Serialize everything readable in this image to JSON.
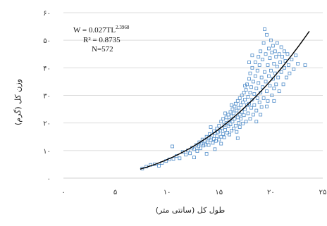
{
  "chart_data": {
    "type": "scatter",
    "xlabel": "طول کل (سانتی متر)",
    "ylabel": "وزن کل (گرم)",
    "xlim": [
      0,
      25
    ],
    "ylim": [
      0,
      60
    ],
    "x_ticks": [
      0,
      5,
      10,
      15,
      20,
      25
    ],
    "y_ticks": [
      0,
      10,
      20,
      30,
      40,
      50,
      60
    ],
    "x_tick_labels": [
      "۰",
      "۵",
      "۱۰",
      "۱۵",
      "۲۰",
      "۲۵"
    ],
    "y_tick_labels": [
      "۰",
      "۱۰",
      "۲۰",
      "۳۰",
      "۴۰",
      "۵۰",
      "۶۰"
    ],
    "grid": "horizontal",
    "marker": "open-square",
    "point_color": "#4f8cc9",
    "fit_color": "#000000",
    "fit": {
      "a": 0.027,
      "b": 2.3968,
      "x_range": [
        7.4,
        23.7
      ]
    },
    "annotation": {
      "equation_main": "W = 0.027TL",
      "equation_exp": "2.3968",
      "r2_label": "R² = 0.8735",
      "n_label": "N=572"
    },
    "points": [
      [
        7.6,
        3.5
      ],
      [
        8.0,
        4.2
      ],
      [
        8.4,
        4.8
      ],
      [
        8.8,
        5.0
      ],
      [
        9.2,
        4.5
      ],
      [
        9.5,
        5.5
      ],
      [
        9.9,
        6.2
      ],
      [
        10.2,
        6.8
      ],
      [
        10.6,
        7.0
      ],
      [
        10.5,
        11.5
      ],
      [
        10.9,
        8.0
      ],
      [
        11.2,
        7.2
      ],
      [
        11.5,
        9.5
      ],
      [
        11.8,
        8.5
      ],
      [
        12.0,
        10.0
      ],
      [
        12.2,
        9.0
      ],
      [
        12.4,
        11.0
      ],
      [
        12.6,
        10.5
      ],
      [
        12.8,
        12.0
      ],
      [
        12.9,
        9.8
      ],
      [
        13.0,
        11.5
      ],
      [
        13.1,
        13.0
      ],
      [
        13.2,
        10.8
      ],
      [
        13.3,
        12.5
      ],
      [
        13.4,
        14.0
      ],
      [
        13.5,
        11.8
      ],
      [
        13.6,
        13.5
      ],
      [
        13.7,
        12.2
      ],
      [
        13.8,
        15.0
      ],
      [
        13.9,
        13.0
      ],
      [
        14.0,
        14.5
      ],
      [
        14.0,
        12.0
      ],
      [
        14.1,
        16.0
      ],
      [
        14.2,
        13.8
      ],
      [
        14.3,
        15.5
      ],
      [
        14.4,
        12.8
      ],
      [
        14.5,
        17.0
      ],
      [
        14.5,
        14.2
      ],
      [
        14.6,
        16.2
      ],
      [
        14.7,
        13.5
      ],
      [
        14.8,
        18.0
      ],
      [
        14.8,
        15.2
      ],
      [
        14.9,
        16.8
      ],
      [
        15.0,
        14.0
      ],
      [
        15.0,
        19.0
      ],
      [
        15.1,
        17.2
      ],
      [
        15.2,
        15.0
      ],
      [
        15.2,
        20.5
      ],
      [
        15.3,
        18.0
      ],
      [
        15.4,
        16.0
      ],
      [
        15.4,
        21.5
      ],
      [
        15.5,
        19.2
      ],
      [
        15.5,
        14.8
      ],
      [
        15.6,
        17.5
      ],
      [
        15.7,
        22.0
      ],
      [
        15.7,
        20.0
      ],
      [
        15.8,
        16.5
      ],
      [
        15.9,
        23.0
      ],
      [
        15.9,
        18.8
      ],
      [
        16.0,
        21.0
      ],
      [
        16.0,
        15.8
      ],
      [
        16.1,
        24.0
      ],
      [
        16.1,
        19.5
      ],
      [
        16.2,
        22.5
      ],
      [
        16.2,
        17.2
      ],
      [
        16.3,
        25.0
      ],
      [
        16.3,
        20.5
      ],
      [
        16.4,
        23.5
      ],
      [
        16.4,
        18.0
      ],
      [
        16.5,
        26.0
      ],
      [
        16.5,
        21.5
      ],
      [
        16.6,
        19.0
      ],
      [
        16.6,
        27.0
      ],
      [
        16.7,
        24.5
      ],
      [
        16.7,
        16.8
      ],
      [
        16.8,
        22.0
      ],
      [
        16.8,
        28.0
      ],
      [
        16.9,
        20.0
      ],
      [
        16.9,
        25.5
      ],
      [
        17.0,
        23.0
      ],
      [
        17.0,
        29.0
      ],
      [
        17.0,
        18.5
      ],
      [
        17.1,
        26.5
      ],
      [
        17.1,
        21.5
      ],
      [
        17.2,
        30.0
      ],
      [
        17.2,
        24.0
      ],
      [
        17.3,
        27.5
      ],
      [
        17.3,
        19.8
      ],
      [
        17.4,
        31.0
      ],
      [
        17.4,
        22.8
      ],
      [
        17.5,
        25.0
      ],
      [
        17.5,
        28.5
      ],
      [
        17.6,
        32.0
      ],
      [
        17.6,
        20.5
      ],
      [
        17.7,
        26.5
      ],
      [
        17.7,
        34.0
      ],
      [
        17.8,
        23.5
      ],
      [
        17.8,
        29.5
      ],
      [
        17.9,
        36.0
      ],
      [
        17.9,
        27.0
      ],
      [
        18.0,
        21.5
      ],
      [
        18.0,
        31.0
      ],
      [
        18.0,
        38.0
      ],
      [
        18.1,
        25.5
      ],
      [
        18.1,
        33.0
      ],
      [
        18.2,
        28.5
      ],
      [
        18.2,
        40.0
      ],
      [
        18.3,
        23.0
      ],
      [
        18.3,
        35.0
      ],
      [
        18.4,
        30.5
      ],
      [
        18.4,
        26.5
      ],
      [
        18.5,
        37.0
      ],
      [
        18.5,
        42.0
      ],
      [
        18.6,
        32.5
      ],
      [
        18.6,
        24.5
      ],
      [
        18.7,
        39.0
      ],
      [
        18.7,
        29.0
      ],
      [
        18.8,
        44.0
      ],
      [
        18.8,
        34.5
      ],
      [
        18.9,
        27.5
      ],
      [
        18.9,
        41.0
      ],
      [
        19.0,
        31.0
      ],
      [
        19.0,
        46.0
      ],
      [
        19.1,
        36.5
      ],
      [
        19.1,
        25.8
      ],
      [
        19.2,
        43.0
      ],
      [
        19.2,
        33.0
      ],
      [
        19.3,
        49.0
      ],
      [
        19.3,
        29.0
      ],
      [
        19.4,
        38.5
      ],
      [
        19.4,
        54.0
      ],
      [
        19.5,
        45.0
      ],
      [
        19.5,
        35.0
      ],
      [
        19.6,
        52.0
      ],
      [
        19.6,
        31.5
      ],
      [
        19.7,
        41.0
      ],
      [
        19.7,
        28.0
      ],
      [
        19.8,
        47.0
      ],
      [
        19.8,
        37.0
      ],
      [
        19.9,
        43.5
      ],
      [
        19.9,
        33.5
      ],
      [
        20.0,
        50.0
      ],
      [
        20.0,
        39.0
      ],
      [
        20.1,
        30.0
      ],
      [
        20.1,
        45.5
      ],
      [
        20.2,
        36.0
      ],
      [
        20.2,
        48.0
      ],
      [
        20.3,
        41.5
      ],
      [
        20.3,
        32.5
      ],
      [
        20.4,
        46.0
      ],
      [
        20.4,
        38.0
      ],
      [
        20.5,
        44.0
      ],
      [
        20.5,
        34.0
      ],
      [
        20.6,
        49.0
      ],
      [
        20.6,
        40.5
      ],
      [
        20.7,
        36.5
      ],
      [
        20.8,
        45.0
      ],
      [
        20.8,
        31.5
      ],
      [
        20.9,
        42.0
      ],
      [
        21.0,
        47.5
      ],
      [
        21.0,
        38.5
      ],
      [
        21.1,
        44.0
      ],
      [
        21.2,
        34.0
      ],
      [
        21.3,
        46.0
      ],
      [
        21.3,
        40.0
      ],
      [
        21.4,
        42.5
      ],
      [
        21.5,
        36.5
      ],
      [
        21.6,
        45.0
      ],
      [
        21.7,
        41.0
      ],
      [
        21.8,
        38.0
      ],
      [
        22.0,
        43.0
      ],
      [
        22.2,
        39.5
      ],
      [
        22.4,
        44.5
      ],
      [
        22.6,
        41.5
      ],
      [
        23.3,
        41.0
      ],
      [
        14.2,
        18.5
      ],
      [
        15.6,
        23.5
      ],
      [
        16.8,
        14.5
      ],
      [
        17.5,
        33.5
      ],
      [
        18.6,
        20.5
      ],
      [
        19.0,
        23.0
      ],
      [
        16.2,
        26.5
      ],
      [
        15.2,
        12.5
      ],
      [
        14.6,
        10.5
      ],
      [
        13.8,
        8.8
      ],
      [
        12.6,
        7.5
      ],
      [
        18.2,
        44.5
      ],
      [
        19.6,
        26.0
      ],
      [
        20.3,
        28.0
      ],
      [
        17.9,
        42.0
      ]
    ]
  }
}
